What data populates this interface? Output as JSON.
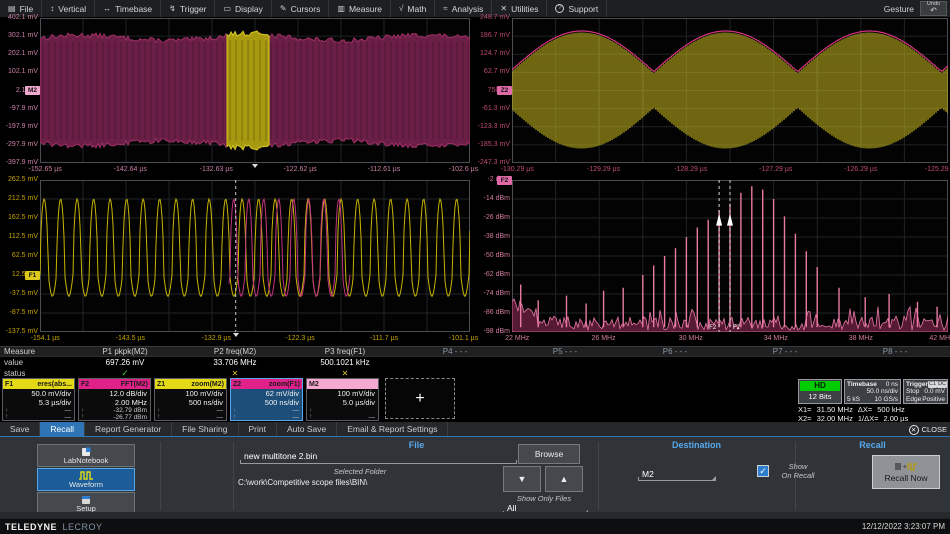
{
  "menu": {
    "items": [
      {
        "icon": "file-icon",
        "label": "File"
      },
      {
        "icon": "vertical-icon",
        "label": "Vertical"
      },
      {
        "icon": "timebase-icon",
        "label": "Timebase"
      },
      {
        "icon": "trigger-icon",
        "label": "Trigger"
      },
      {
        "icon": "display-icon",
        "label": "Display"
      },
      {
        "icon": "cursors-icon",
        "label": "Cursors"
      },
      {
        "icon": "measure-icon",
        "label": "Measure"
      },
      {
        "icon": "math-icon",
        "label": "Math"
      },
      {
        "icon": "analysis-icon",
        "label": "Analysis"
      },
      {
        "icon": "utilities-icon",
        "label": "Utilities"
      },
      {
        "icon": "support-icon",
        "label": "Support"
      }
    ],
    "gesture_label": "Gesture",
    "undo_label": "Undo"
  },
  "grids": {
    "top_left": {
      "badge": "M2",
      "badge_color": "#f2a9cf",
      "label_color": "#cd7fa6",
      "trace_color": "#a13066",
      "burst_color": "#d8ca20",
      "y_labels": [
        "402.1 mV",
        "302.1 mV",
        "202.1 mV",
        "102.1 mV",
        "2.1 mV",
        "-97.9 mV",
        "-197.9 mV",
        "-297.9 mV",
        "-397.9 mV"
      ],
      "x_labels": [
        "-152.65 µs",
        "-142.64 µs",
        "-132.63 µs",
        "-122.62 µs",
        "-112.61 µs",
        "-102.6 µs"
      ]
    },
    "top_right": {
      "badge": "Z2",
      "badge_color": "#e06aa8",
      "label_color": "#c04a72",
      "trace_color": "#c8b81e",
      "envelope_color": "#d63384",
      "y_labels": [
        "248.7 mV",
        "186.7 mV",
        "124.7 mV",
        "62.7 mV",
        "750 µV",
        "-61.3 mV",
        "-123.3 mV",
        "-185.3 mV",
        "-247.3 mV"
      ],
      "x_labels": [
        "-130.29 µs",
        "-129.29 µs",
        "-128.29 µs",
        "-127.29 µs",
        "-126.29 µs",
        "-125.29 µs"
      ]
    },
    "bottom_left": {
      "badge": "F1",
      "badge_color": "#ddc91c",
      "label_color": "#c7a400",
      "trace_color": "#c8b400",
      "overlay_color": "#c2357f",
      "y_labels": [
        "262.5 mV",
        "212.5 mV",
        "162.5 mV",
        "112.5 mV",
        "62.5 mV",
        "12.5 mV",
        "-37.5 mV",
        "-87.5 mV",
        "-137.5 mV"
      ],
      "x_labels": [
        "-154.1 µs",
        "-143.5 µs",
        "-132.9 µs",
        "-122.3 µs",
        "-111.7 µs",
        "-101.1 µs"
      ]
    },
    "bottom_right": {
      "badge": "F2",
      "badge_color": "#e06aa8",
      "label_color": "#d47ba0",
      "trace_color": "#e87aa4",
      "y_labels": [
        "-2 dBm",
        "-14 dBm",
        "-26 dBm",
        "-38 dBm",
        "-50 dBm",
        "-62 dBm",
        "-74 dBm",
        "-86 dBm",
        "-98 dBm"
      ],
      "x_labels": [
        "22 MHz",
        "26 MHz",
        "30 MHz",
        "34 MHz",
        "38 MHz",
        "42 MHz"
      ],
      "cursor_labels": [
        "F2",
        "F2"
      ]
    }
  },
  "measure": {
    "row_labels": {
      "name": "Measure",
      "value": "value",
      "status": "status"
    },
    "columns": [
      {
        "header": "P1 pkpk(M2)",
        "value": "697.26 mV",
        "status": "check"
      },
      {
        "header": "P2 freq(M2)",
        "value": "33.706 MHz",
        "status": "warn"
      },
      {
        "header": "P3 freq(F1)",
        "value": "500.1021 kHz",
        "status": "warn"
      },
      {
        "header": "P4 - - -",
        "value": "",
        "status": ""
      },
      {
        "header": "P5 - - -",
        "value": "",
        "status": ""
      },
      {
        "header": "P6 - - -",
        "value": "",
        "status": ""
      },
      {
        "header": "P7 - - -",
        "value": "",
        "status": ""
      },
      {
        "header": "P8 - - -",
        "value": "",
        "status": ""
      }
    ]
  },
  "descriptors": [
    {
      "id": "F1",
      "title": "eres(abs...",
      "line1": "50.0 mV/div",
      "line2": "5.3 µs/div",
      "cursor1": "—",
      "cursor2": "—",
      "header_color": "#e3d916",
      "selected": false
    },
    {
      "id": "F2",
      "title": "FFT(M2)",
      "line1": "12.0 dB/div",
      "line2": "2.00 MHz",
      "cursor1": "-32.79 dBm",
      "cursor2": "-26.77 dBm",
      "header_color": "#e0218a",
      "selected": false
    },
    {
      "id": "Z1",
      "title": "zoom(M2)",
      "line1": "100 mV/div",
      "line2": "500 ns/div",
      "cursor1": "—",
      "cursor2": "—",
      "header_color": "#e3d916",
      "selected": false
    },
    {
      "id": "Z2",
      "title": "zoom(F1)",
      "line1": "62 mV/div",
      "line2": "500 ns/div",
      "cursor1": "—",
      "cursor2": "—",
      "header_color": "#e0218a",
      "selected": true
    },
    {
      "id": "M2",
      "title": "",
      "line1": "100 mV/div",
      "line2": "5.0 µs/div",
      "cursor1": "",
      "cursor2": "—",
      "header_color": "#f5a9d0",
      "selected": false
    }
  ],
  "add_trace_label": "+",
  "acquisition": {
    "hd": {
      "badge": "HD",
      "bits": "12 Bits"
    },
    "timebase": {
      "title": "Timebase",
      "offset": "0 ns",
      "scale": "50.0 ns/div",
      "samples": "5 kS",
      "rate": "10 GS/s"
    },
    "trigger": {
      "title": "Trigger",
      "source": "C1",
      "coupling": "DC",
      "mode": "Stop",
      "level": "0.0 mV",
      "type": "Edge",
      "slope": "Positive"
    }
  },
  "cursor_readout": {
    "x1_label": "X1=",
    "x1_value": "31.50 MHz",
    "dx_label": "ΔX=",
    "dx_value": "500 kHz",
    "x2_label": "X2=",
    "x2_value": "32.00 MHz",
    "inv_label": "1/ΔX=",
    "inv_value": "2.00 µs"
  },
  "dialog": {
    "tabs": [
      {
        "label": "Save",
        "selected": false
      },
      {
        "label": "Recall",
        "selected": true
      },
      {
        "label": "Report Generator",
        "selected": false
      },
      {
        "label": "File Sharing",
        "selected": false
      },
      {
        "label": "Print",
        "selected": false
      },
      {
        "label": "Auto Save",
        "selected": false
      },
      {
        "label": "Email & Report Settings",
        "selected": false
      }
    ],
    "close_label": "CLOSE",
    "source_buttons": [
      {
        "icon": "labnotebook-icon",
        "label": "LabNotebook",
        "selected": false
      },
      {
        "icon": "waveform-icon",
        "label": "Waveform",
        "selected": true
      },
      {
        "icon": "setup-icon",
        "label": "Setup",
        "selected": false
      }
    ],
    "file": {
      "section_title": "File",
      "filename": "new multitone 2.bin",
      "selected_folder_label": "Selected Folder",
      "selected_folder_path": "C:\\work\\Competitive scope files\\BIN\\",
      "browse_label": "Browse",
      "show_only_files_label": "Show Only Files",
      "file_filter": "All"
    },
    "destination": {
      "section_title": "Destination",
      "destination_value": "M2",
      "show_label": "Show",
      "on_recall_label": "On Recall",
      "checked": true
    },
    "recall": {
      "section_title": "Recall",
      "button_label": "Recall Now"
    }
  },
  "statusbar": {
    "brand_primary": "TELEDYNE",
    "brand_secondary": "LECROY",
    "datetime": "12/12/2022 3:23:07 PM"
  }
}
